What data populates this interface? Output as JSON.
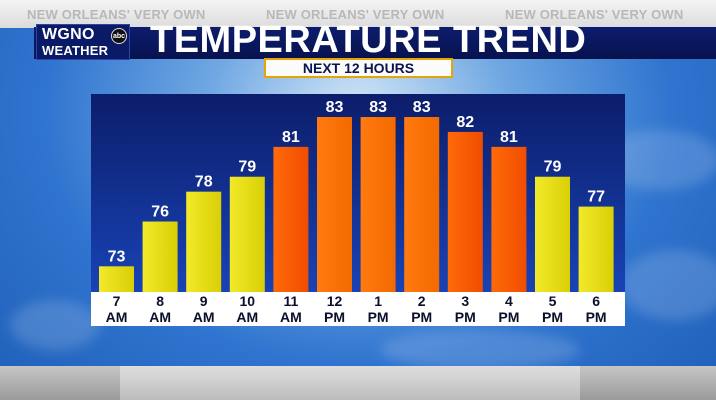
{
  "header": {
    "slogans": [
      "NEW ORLEANS' VERY OWN",
      "NEW ORLEANS' VERY OWN",
      "NEW ORLEANS' VERY OWN"
    ],
    "logo_callsign": "WGNO",
    "logo_network": "abc",
    "logo_sub": "WEATHER",
    "title": "TEMPERATURE TREND",
    "subtitle": "NEXT 12 HOURS"
  },
  "colors": {
    "yellow_bar": "#e6dc10",
    "orange_bar": "#ff5a00",
    "title_bar": "#0a185c",
    "panel": "#1a3aa8"
  },
  "chart_data": {
    "type": "bar",
    "title": "TEMPERATURE TREND",
    "subtitle": "NEXT 12 HOURS",
    "categories": [
      "7 AM",
      "8 AM",
      "9 AM",
      "10 AM",
      "11 AM",
      "12 PM",
      "1 PM",
      "2 PM",
      "3 PM",
      "4 PM",
      "5 PM",
      "6 PM"
    ],
    "hours": [
      "7",
      "8",
      "9",
      "10",
      "11",
      "12",
      "1",
      "2",
      "3",
      "4",
      "5",
      "6"
    ],
    "periods": [
      "AM",
      "AM",
      "AM",
      "AM",
      "AM",
      "PM",
      "PM",
      "PM",
      "PM",
      "PM",
      "PM",
      "PM"
    ],
    "values": [
      73,
      76,
      78,
      79,
      81,
      83,
      83,
      83,
      82,
      81,
      79,
      77
    ],
    "bar_colors": [
      "yellow",
      "yellow",
      "yellow",
      "yellow",
      "orange",
      "orange",
      "orange",
      "orange",
      "orange",
      "orange",
      "yellow",
      "yellow"
    ],
    "ylim": [
      72,
      83
    ],
    "grid": false
  }
}
